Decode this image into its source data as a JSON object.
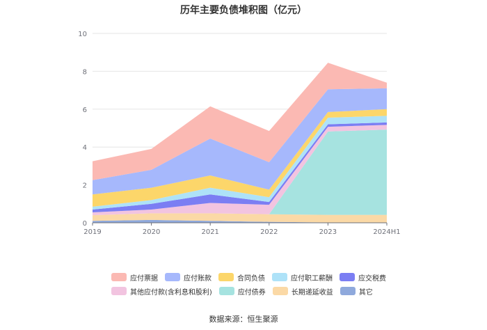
{
  "chart_data": {
    "type": "area",
    "stacked": true,
    "title": "历年主要负债堆积图（亿元）",
    "categories": [
      "2019",
      "2020",
      "2021",
      "2022",
      "2023",
      "2024H1"
    ],
    "ylim": [
      0,
      10
    ],
    "yticks": [
      "0",
      "2",
      "4",
      "6",
      "8",
      "10"
    ],
    "grid": true,
    "legend_position": "bottom",
    "series": [
      {
        "name": "其它",
        "color": "#8fa9dc",
        "values": [
          0.1,
          0.15,
          0.1,
          0.05,
          0.02,
          0.02
        ]
      },
      {
        "name": "长期递延收益",
        "color": "#fbd9a6",
        "values": [
          0.3,
          0.35,
          0.4,
          0.4,
          0.4,
          0.4
        ]
      },
      {
        "name": "应付债券",
        "color": "#a6e3e0",
        "values": [
          0.0,
          0.0,
          0.0,
          0.0,
          4.4,
          4.5
        ]
      },
      {
        "name": "其他应付款(含利息和股利)",
        "color": "#f2c4e0",
        "values": [
          0.15,
          0.2,
          0.55,
          0.5,
          0.25,
          0.25
        ]
      },
      {
        "name": "应交税费",
        "color": "#7b7ef3",
        "values": [
          0.15,
          0.3,
          0.45,
          0.15,
          0.13,
          0.13
        ]
      },
      {
        "name": "应付职工薪酬",
        "color": "#aee2f8",
        "values": [
          0.15,
          0.2,
          0.35,
          0.25,
          0.35,
          0.35
        ]
      },
      {
        "name": "合同负债",
        "color": "#fcd66a",
        "values": [
          0.65,
          0.65,
          0.65,
          0.4,
          0.3,
          0.35
        ]
      },
      {
        "name": "应付账款",
        "color": "#a6b8fc",
        "values": [
          0.75,
          0.95,
          1.95,
          1.45,
          1.2,
          1.1
        ]
      },
      {
        "name": "应付票据",
        "color": "#fbb9b3",
        "values": [
          1.0,
          1.1,
          1.7,
          1.65,
          1.4,
          0.3
        ]
      }
    ],
    "legend_order": [
      "应付票据",
      "应付账款",
      "合同负债",
      "应付职工薪酬",
      "应交税费",
      "其他应付款(含利息和股利)",
      "应付债券",
      "长期递延收益",
      "其它"
    ]
  },
  "source": "数据来源：恒生聚源"
}
